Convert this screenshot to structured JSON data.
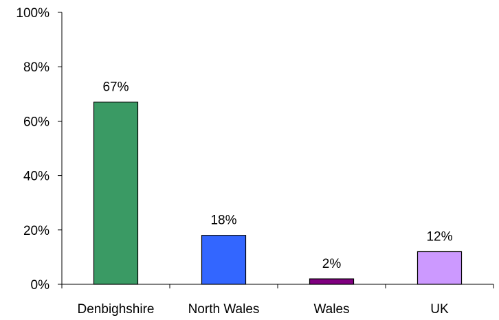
{
  "chart_data": {
    "type": "bar",
    "title": "",
    "xlabel": "",
    "ylabel": "",
    "categories": [
      "Denbighshire",
      "North Wales",
      "Wales",
      "UK"
    ],
    "values": [
      67,
      18,
      2,
      12
    ],
    "data_labels": [
      "67%",
      "18%",
      "2%",
      "12%"
    ],
    "bar_colors": [
      "#3a9a64",
      "#3366ff",
      "#800080",
      "#cc99ff"
    ],
    "ylim": [
      0,
      100
    ],
    "yticks": [
      0,
      20,
      40,
      60,
      80,
      100
    ],
    "ytick_labels": [
      "0%",
      "20%",
      "40%",
      "60%",
      "80%",
      "100%"
    ],
    "grid": false,
    "legend": "none"
  }
}
